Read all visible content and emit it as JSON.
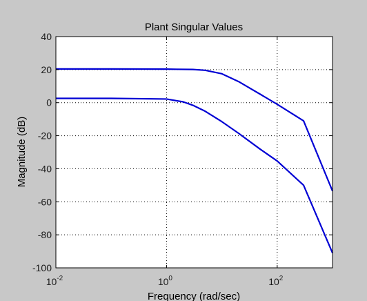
{
  "chart_data": {
    "type": "line",
    "title": "Plant Singular Values",
    "xlabel": "Frequency (rad/sec)",
    "ylabel": "Magnitude (dB)",
    "xscale": "log",
    "xlim": [
      0.01,
      1000
    ],
    "ylim": [
      -100,
      40
    ],
    "xticks": [
      {
        "value": 0.01,
        "base": "10",
        "exp": "-2"
      },
      {
        "value": 1,
        "base": "10",
        "exp": "0"
      },
      {
        "value": 100,
        "base": "10",
        "exp": "2"
      }
    ],
    "yticks": [
      40,
      20,
      0,
      -20,
      -40,
      -60,
      -80,
      -100
    ],
    "grid": true,
    "series_color": "#0000d4",
    "series": [
      {
        "x": [
          0.01,
          0.1,
          1,
          3,
          5,
          10,
          20,
          50,
          100,
          300,
          1000
        ],
        "y": [
          20.4,
          20.4,
          20.3,
          20.1,
          19.6,
          17.5,
          12.8,
          5.0,
          -1.0,
          -11.0,
          -53.5
        ]
      },
      {
        "x": [
          0.01,
          0.1,
          1,
          2,
          3,
          5,
          10,
          20,
          50,
          100,
          300,
          1000
        ],
        "y": [
          2.6,
          2.6,
          2.2,
          0.5,
          -1.6,
          -5.2,
          -11.5,
          -18.5,
          -28.3,
          -35.3,
          -50.0,
          -91.0
        ]
      }
    ]
  }
}
